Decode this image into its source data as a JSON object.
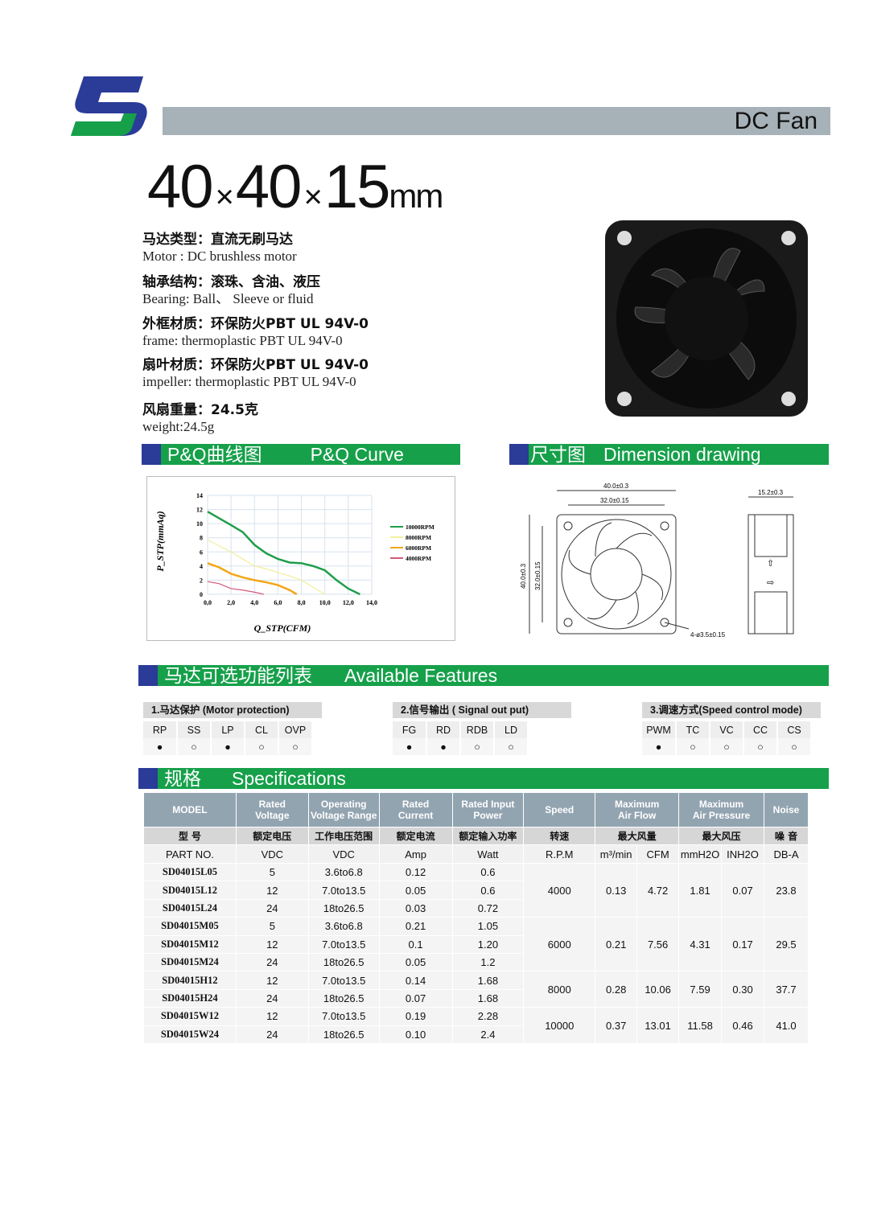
{
  "header": {
    "product_type": "DC Fan",
    "logo_text": "S"
  },
  "title": {
    "a": "40",
    "b": "40",
    "c": "15",
    "x": "×",
    "unit": "mm"
  },
  "specs": [
    {
      "cn": "马达类型：直流无刷马达",
      "en": "Motor : DC brushless motor"
    },
    {
      "cn": "轴承结构：滚珠、含油、液压",
      "en": "Bearing: Ball、 Sleeve or fluid"
    },
    {
      "cn": "外框材质：环保防火PBT UL 94V-0",
      "en": "frame: thermoplastic PBT UL 94V-0"
    },
    {
      "cn": "扇叶材质：环保防火PBT UL 94V-0",
      "en": "impeller: thermoplastic PBT UL 94V-0"
    },
    {
      "cn": "风扇重量：24.5克",
      "en": "weight:24.5g"
    }
  ],
  "sections": {
    "pq_cn": "P&Q曲线图",
    "pq_en": "P&Q Curve",
    "dim_cn": "尺寸图",
    "dim_en": "Dimension drawing",
    "feat_cn": "马达可选功能列表",
    "feat_en": "Available Features",
    "spec_cn": "规格",
    "spec_en": "Specifications"
  },
  "chart_data": {
    "type": "line",
    "xlabel": "Q_STP(CFM)",
    "ylabel": "P_STP(mmAq)",
    "xlim": [
      0,
      14
    ],
    "ylim": [
      0,
      14
    ],
    "xticks": [
      "0,0",
      "2,0",
      "4,0",
      "6,0",
      "8,0",
      "10,0",
      "12,0",
      "14,0"
    ],
    "yticks": [
      "0",
      "2",
      "4",
      "6",
      "8",
      "10",
      "12",
      "14"
    ],
    "grid": true,
    "legend": "right",
    "series": [
      {
        "name": "10000RPM",
        "color": "#1f9e4a",
        "x": [
          0,
          2,
          3,
          4,
          5,
          6,
          7,
          8,
          9,
          10,
          11,
          12,
          13
        ],
        "y": [
          11.7,
          9.8,
          8.8,
          7,
          5.8,
          5,
          4.5,
          4.4,
          4,
          3.4,
          2,
          0.8,
          0
        ]
      },
      {
        "name": "8000RPM",
        "color": "#f2ef9a",
        "x": [
          0,
          2,
          3,
          4,
          5,
          6,
          7,
          8,
          9,
          10
        ],
        "y": [
          7.7,
          6,
          5,
          4,
          3.6,
          3.1,
          2.6,
          2,
          1,
          0
        ]
      },
      {
        "name": "6000RPM",
        "color": "#f4a614",
        "x": [
          0,
          1,
          2,
          3,
          4,
          5,
          6,
          7,
          7.6
        ],
        "y": [
          4.4,
          3.8,
          2.9,
          2.4,
          2,
          1.7,
          1.3,
          0.6,
          0
        ]
      },
      {
        "name": "4000RPM",
        "color": "#d25a78",
        "x": [
          0,
          1,
          2,
          3,
          4,
          4.8
        ],
        "y": [
          1.8,
          1.5,
          0.8,
          0.6,
          0.3,
          0
        ]
      }
    ]
  },
  "dimensions": {
    "outer": "40.0±0.3",
    "inner": "32.0±0.15",
    "height_outer": "40.0±0.3",
    "height_inner": "32.0±0.15",
    "thickness": "15.2±0.3",
    "holes": "4-ø3.5±0.15"
  },
  "features": [
    {
      "title": "1.马达保护 (Motor protection)",
      "items": [
        {
          "k": "RP",
          "on": true
        },
        {
          "k": "SS",
          "on": false
        },
        {
          "k": "LP",
          "on": true
        },
        {
          "k": "CL",
          "on": false
        },
        {
          "k": "OVP",
          "on": false
        }
      ]
    },
    {
      "title": "2.信号输出 ( Signal out put)",
      "items": [
        {
          "k": "FG",
          "on": true
        },
        {
          "k": "RD",
          "on": true
        },
        {
          "k": "RDB",
          "on": false
        },
        {
          "k": "LD",
          "on": false
        }
      ]
    },
    {
      "title": "3.调速方式(Speed control mode)",
      "items": [
        {
          "k": "PWM",
          "on": true
        },
        {
          "k": "TC",
          "on": false
        },
        {
          "k": "VC",
          "on": false
        },
        {
          "k": "CC",
          "on": false
        },
        {
          "k": "CS",
          "on": false
        }
      ]
    }
  ],
  "table": {
    "headers": [
      "MODEL",
      "Rated\nVoltage",
      "Operating\nVoltage Range",
      "Rated\nCurrent",
      "Rated Input\nPower",
      "Speed",
      "Maximum\nAir Flow",
      "Maximum\nAir Pressure",
      "Noise"
    ],
    "headers_cn": [
      "型  号",
      "额定电压",
      "工作电压范围",
      "额定电流",
      "额定输入功率",
      "转速",
      "最大风量",
      "最大风压",
      "噪  音"
    ],
    "units": [
      "PART NO.",
      "VDC",
      "VDC",
      "Amp",
      "Watt",
      "R.P.M",
      "m³/min",
      "CFM",
      "mmH2O",
      "INH2O",
      "DB-A"
    ],
    "rows": [
      [
        "SD04015L05",
        "5",
        "3.6to6.8",
        "0.12",
        "0.6"
      ],
      [
        "SD04015L12",
        "12",
        "7.0to13.5",
        "0.05",
        "0.6"
      ],
      [
        "SD04015L24",
        "24",
        "18to26.5",
        "0.03",
        "0.72"
      ],
      [
        "SD04015M05",
        "5",
        "3.6to6.8",
        "0.21",
        "1.05"
      ],
      [
        "SD04015M12",
        "12",
        "7.0to13.5",
        "0.1",
        "1.20"
      ],
      [
        "SD04015M24",
        "24",
        "18to26.5",
        "0.05",
        "1.2"
      ],
      [
        "SD04015H12",
        "12",
        "7.0to13.5",
        "0.14",
        "1.68"
      ],
      [
        "SD04015H24",
        "24",
        "18to26.5",
        "0.07",
        "1.68"
      ],
      [
        "SD04015W12",
        "12",
        "7.0to13.5",
        "0.19",
        "2.28"
      ],
      [
        "SD04015W24",
        "24",
        "18to26.5",
        "0.10",
        "2.4"
      ]
    ],
    "groups": [
      {
        "start": 0,
        "span": 3,
        "vals": [
          "4000",
          "0.13",
          "4.72",
          "1.81",
          "0.07",
          "23.8"
        ]
      },
      {
        "start": 3,
        "span": 3,
        "vals": [
          "6000",
          "0.21",
          "7.56",
          "4.31",
          "0.17",
          "29.5"
        ]
      },
      {
        "start": 6,
        "span": 2,
        "vals": [
          "8000",
          "0.28",
          "10.06",
          "7.59",
          "0.30",
          "37.7"
        ]
      },
      {
        "start": 8,
        "span": 2,
        "vals": [
          "10000",
          "0.37",
          "13.01",
          "11.58",
          "0.46",
          "41.0"
        ]
      }
    ]
  }
}
